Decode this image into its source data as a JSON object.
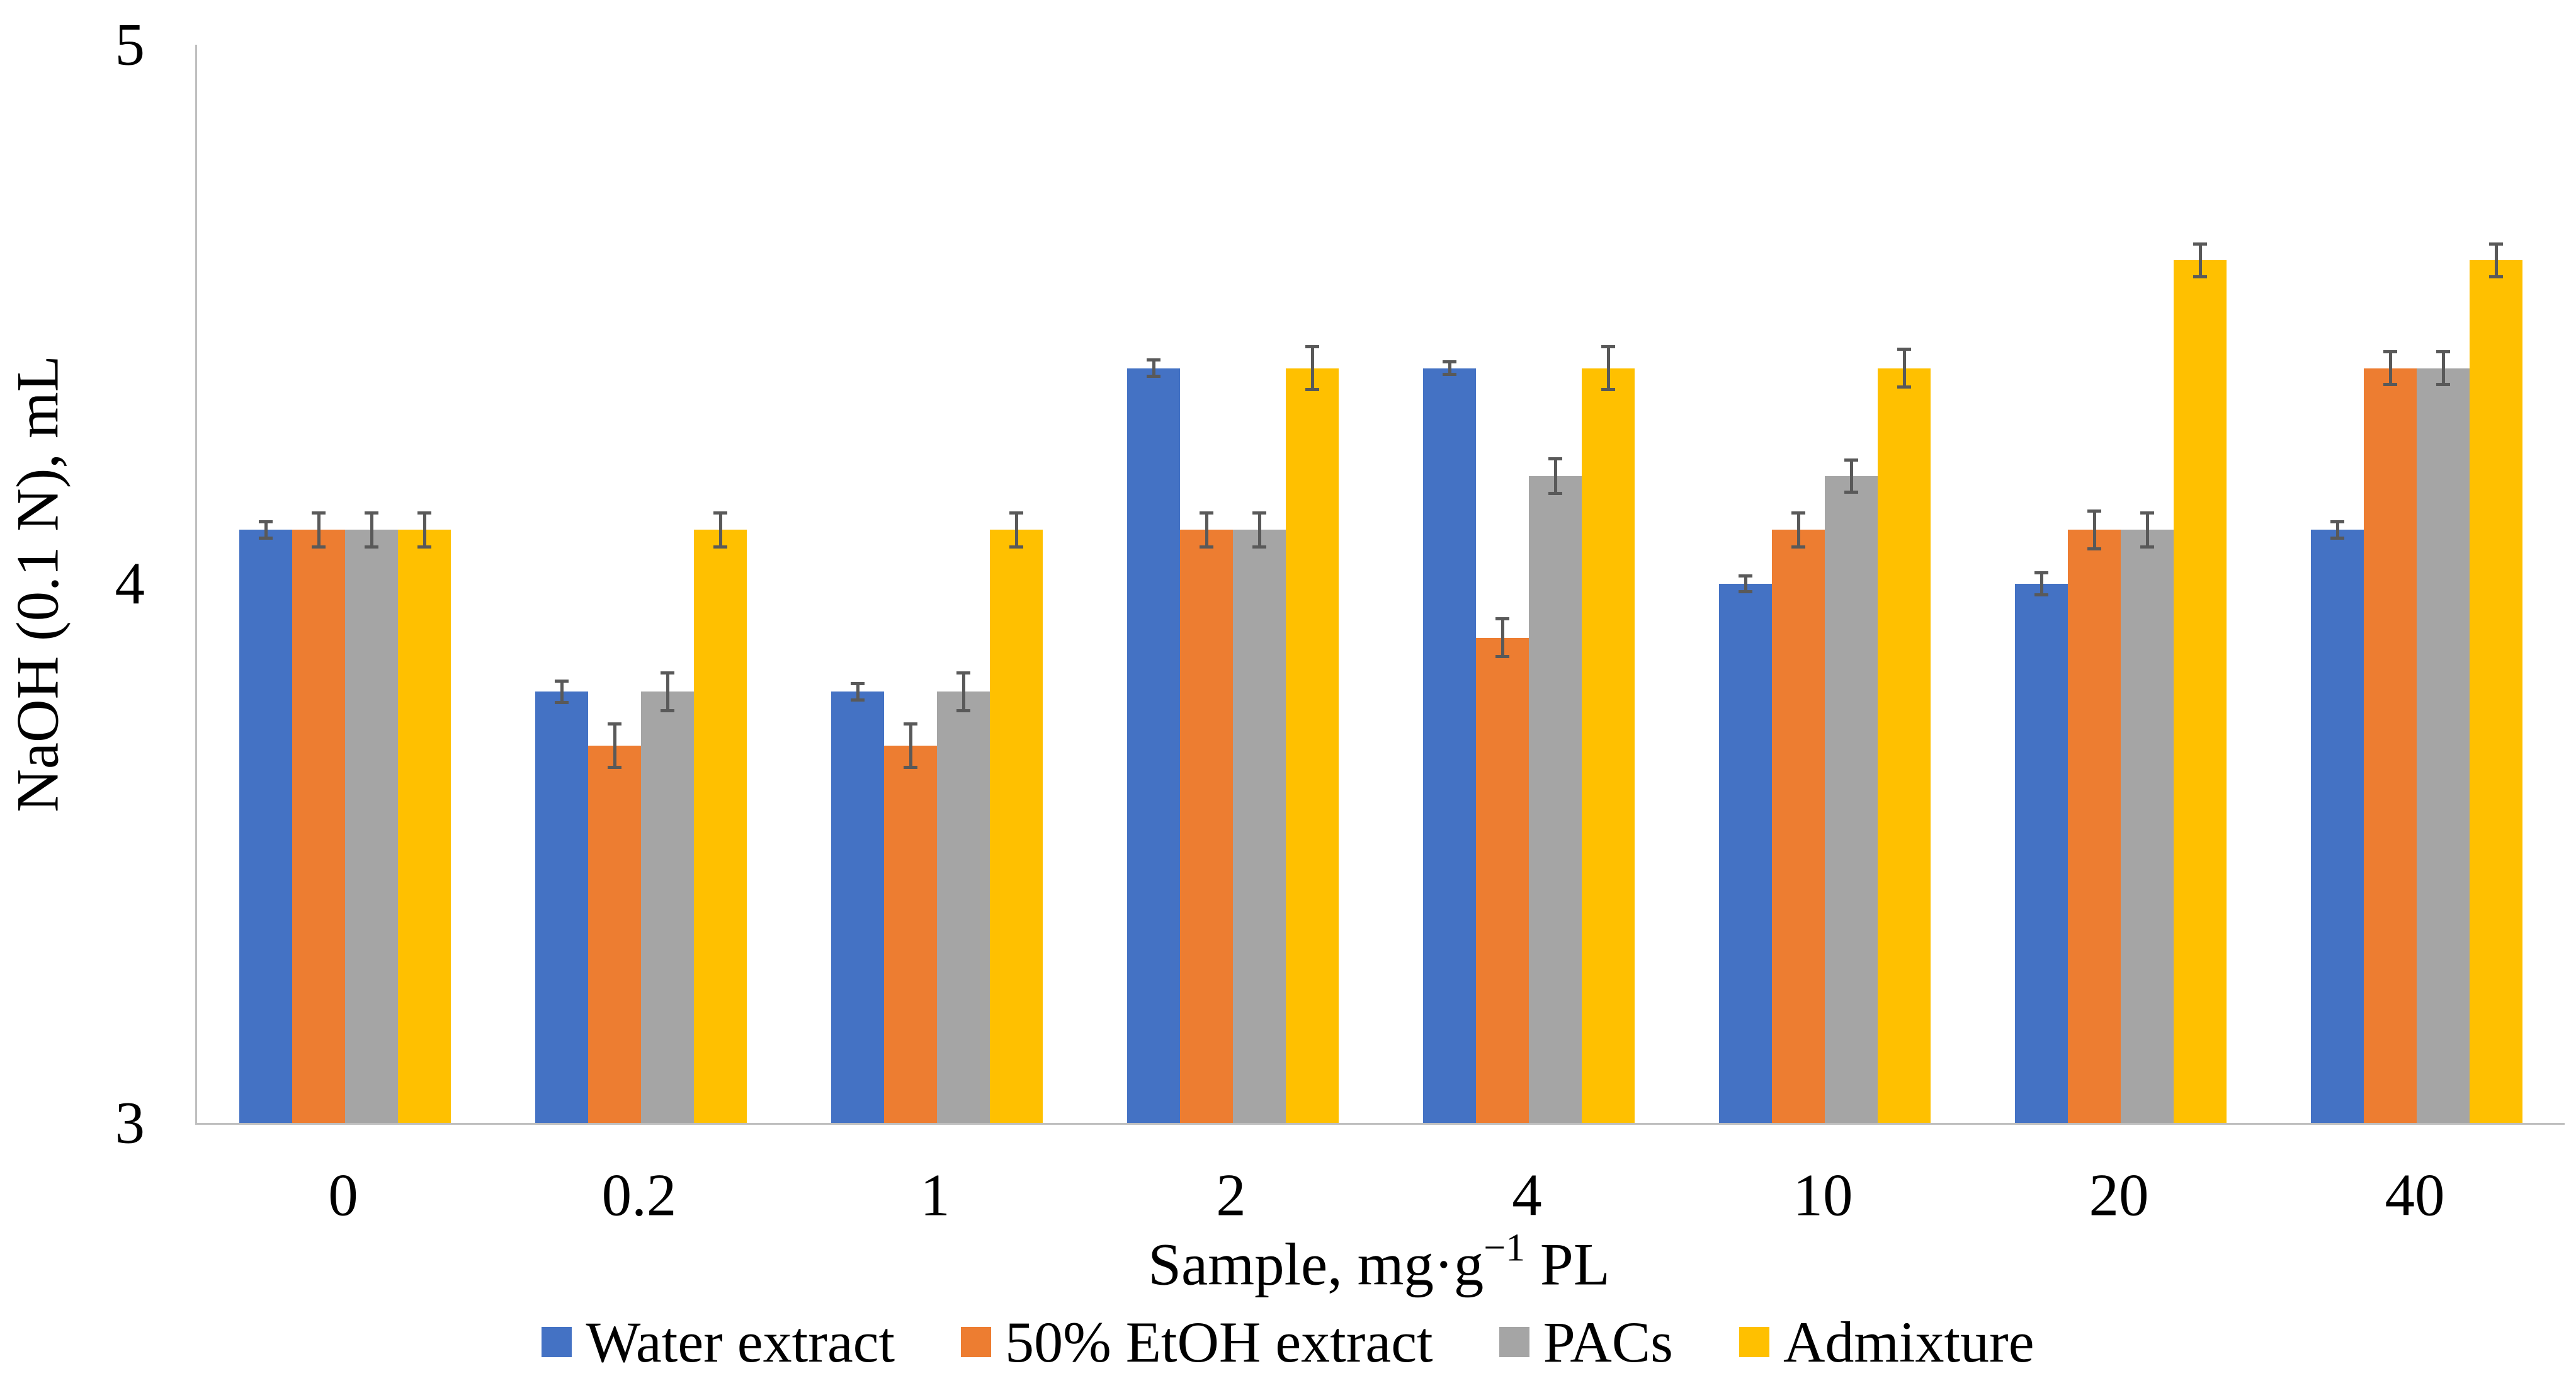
{
  "chart_data": {
    "type": "bar",
    "title": "",
    "categories": [
      "0",
      "0.2",
      "1",
      "2",
      "4",
      "10",
      "20",
      "40"
    ],
    "series": [
      {
        "name": "Water extract",
        "color": "#4472C4",
        "values": [
          4.1,
          3.8,
          3.8,
          4.4,
          4.4,
          4.0,
          4.0,
          4.1
        ],
        "errors": [
          0.015,
          0.02,
          0.015,
          0.015,
          0.012,
          0.015,
          0.02,
          0.015
        ]
      },
      {
        "name": "50% EtOH extract",
        "color": "#ED7D31",
        "values": [
          4.1,
          3.7,
          3.7,
          4.1,
          3.9,
          4.1,
          4.1,
          4.4
        ],
        "errors": [
          0.032,
          0.04,
          0.04,
          0.032,
          0.035,
          0.032,
          0.035,
          0.03
        ]
      },
      {
        "name": "PACs",
        "color": "#A5A5A5",
        "values": [
          4.1,
          3.8,
          3.8,
          4.1,
          4.2,
          4.2,
          4.1,
          4.4
        ],
        "errors": [
          0.032,
          0.035,
          0.035,
          0.032,
          0.032,
          0.03,
          0.032,
          0.03
        ]
      },
      {
        "name": "Admixture",
        "color": "#FFC000",
        "values": [
          4.1,
          4.1,
          4.1,
          4.4,
          4.4,
          4.4,
          4.6,
          4.6
        ],
        "errors": [
          0.032,
          0.032,
          0.032,
          0.04,
          0.04,
          0.035,
          0.03,
          0.03
        ]
      }
    ],
    "xlabel_parts": {
      "prefix": "Sample, mg·g",
      "sup": "−1",
      "suffix": " PL"
    },
    "ylabel": "NaOH (0.1 N), mL",
    "ylim": [
      3,
      5
    ],
    "yticks": [
      "3",
      "4",
      "5"
    ],
    "grid": false,
    "legend_position": "bottom",
    "axis_line_color": "#BFBFBF",
    "error_bar_color": "#595959"
  }
}
